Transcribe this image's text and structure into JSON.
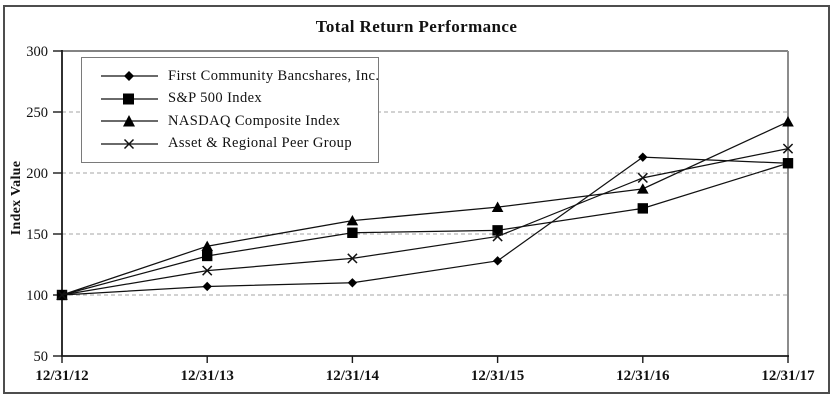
{
  "title": "Total Return Performance",
  "chart_data": {
    "type": "line",
    "title": "Total Return Performance",
    "xlabel": "",
    "ylabel": "Index Value",
    "ylim": [
      50,
      300
    ],
    "yticks": [
      50,
      100,
      150,
      200,
      250,
      300
    ],
    "grid": "horizontal dashed gridlines at 100-250, on",
    "legend_position": "top-left inside plot",
    "categories": [
      "12/31/12",
      "12/31/13",
      "12/31/14",
      "12/31/15",
      "12/31/16",
      "12/31/17"
    ],
    "series": [
      {
        "name": "First Community Bancshares, Inc.",
        "marker": "diamond",
        "values": [
          100,
          107,
          110,
          128,
          213,
          208
        ]
      },
      {
        "name": "S&P 500 Index",
        "marker": "square",
        "values": [
          100,
          132,
          151,
          153,
          171,
          208
        ]
      },
      {
        "name": "NASDAQ Composite Index",
        "marker": "triangle",
        "values": [
          100,
          140,
          161,
          172,
          187,
          242
        ]
      },
      {
        "name": "Asset & Regional Peer Group",
        "marker": "x",
        "values": [
          100,
          120,
          130,
          148,
          196,
          220
        ]
      }
    ],
    "colors": {
      "line": "#111111",
      "marker": "#000000",
      "grid": "#a6a6a6",
      "axis": "#1a1a1a",
      "frame_top_right": "#8c8c8c",
      "outer_border": "#4d4d4d",
      "background": "#ffffff"
    }
  }
}
